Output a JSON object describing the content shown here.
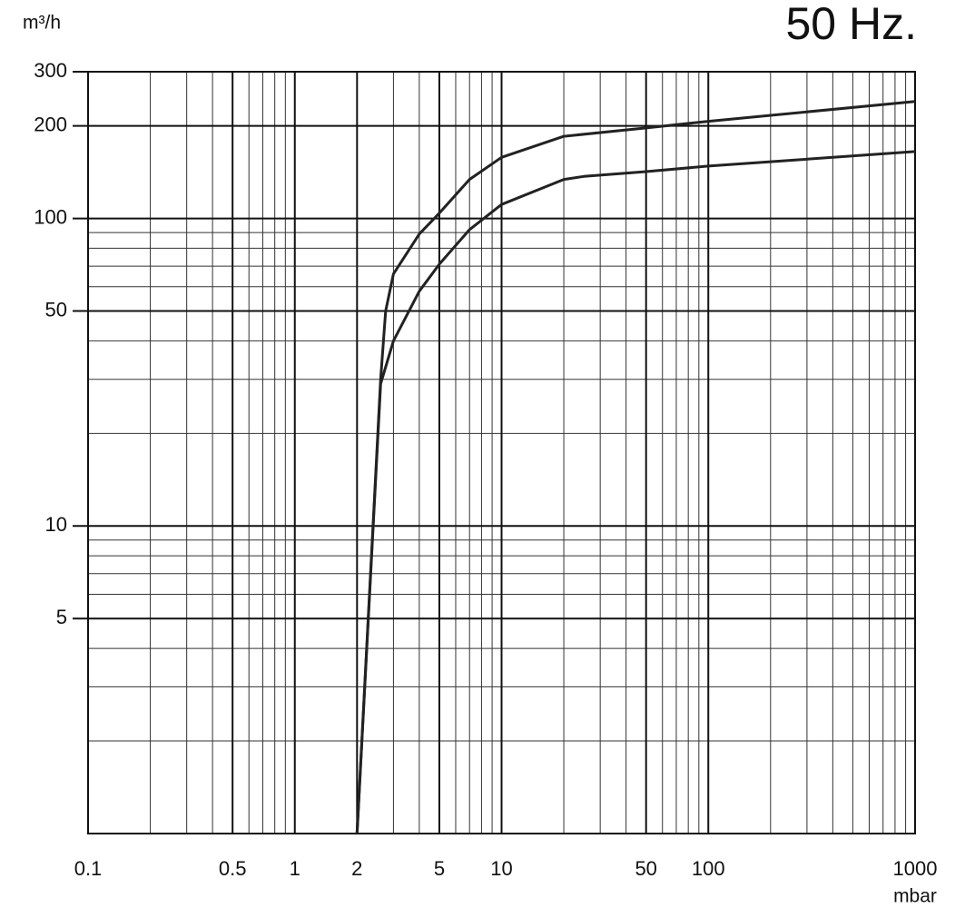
{
  "chart_data": {
    "type": "line",
    "title": "50 Hz.",
    "x_label": "mbar",
    "y_label": "m³/h",
    "log_x": true,
    "log_y": true,
    "grid": true,
    "xlim": [
      0.1,
      1000
    ],
    "ylim": [
      1,
      300
    ],
    "xticks": [
      0.1,
      0.5,
      1,
      2,
      5,
      10,
      50,
      100,
      1000
    ],
    "yticks": [
      5,
      10,
      50,
      100,
      200,
      300
    ],
    "xminorticks": [
      0.2,
      0.3,
      0.4,
      0.6,
      0.7,
      0.8,
      0.9,
      3,
      4,
      6,
      7,
      8,
      9,
      20,
      30,
      40,
      60,
      70,
      80,
      90,
      200,
      300,
      400,
      500,
      600,
      700,
      800,
      900
    ],
    "yminorticks": [
      2,
      3,
      4,
      6,
      7,
      8,
      9,
      20,
      30,
      40,
      60,
      70,
      80,
      90
    ],
    "series": [
      {
        "color": "#222222",
        "x": [
          2,
          2.6,
          2.75,
          3,
          4,
          5,
          7,
          10,
          20,
          50,
          100,
          1000
        ],
        "values": [
          1,
          30,
          50,
          66,
          89,
          104,
          134,
          158,
          185,
          197,
          207,
          240
        ]
      },
      {
        "color": "#222222",
        "x": [
          2,
          2.6,
          3,
          4,
          5,
          7,
          10,
          20,
          25,
          50,
          100,
          1000
        ],
        "values": [
          1,
          29,
          40,
          58,
          71,
          92,
          111,
          134,
          137,
          142,
          148,
          165
        ]
      }
    ]
  }
}
